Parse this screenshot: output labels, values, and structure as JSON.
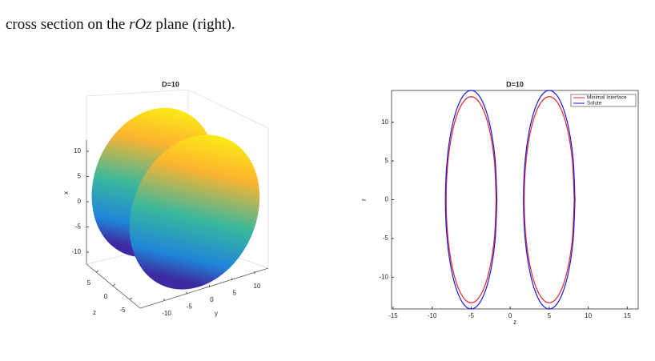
{
  "text": {
    "caption_start": "cross section on the ",
    "caption_math": "rOz",
    "caption_end": " plane (right)."
  },
  "chart_data": [
    {
      "type": "surface",
      "title": "D=10",
      "xlabel": "x",
      "ylabel": "y",
      "zlabel": "z",
      "xticks": [
        10,
        5,
        0,
        -5,
        -10
      ],
      "yticks": [
        -10,
        -5,
        0,
        5,
        10
      ],
      "zticks": [
        5,
        0,
        -5
      ]
    },
    {
      "type": "line",
      "title": "D=10",
      "xlabel": "z",
      "ylabel": "r",
      "xlim": [
        -15.2,
        16.4
      ],
      "ylim": [
        -14.1,
        14.1
      ],
      "xticks": [
        -15,
        -10,
        -5,
        0,
        5,
        10,
        15
      ],
      "yticks": [
        -10,
        -5,
        0,
        5,
        10
      ],
      "legend": "top-right",
      "series": [
        {
          "name": "Minimal Interface",
          "color": "#e3232c",
          "x": [
            -1.8,
            -2.04,
            -2.74,
            -3.78,
            -5,
            -6.22,
            -7.26,
            -7.96,
            -8.2,
            -7.96,
            -7.26,
            -6.22,
            -5,
            -3.78,
            -2.74,
            -2.04,
            -1.8,
            null,
            8.2,
            7.96,
            7.26,
            6.22,
            5,
            3.78,
            2.74,
            2.04,
            1.8,
            2.04,
            2.74,
            3.78,
            5,
            6.22,
            7.26,
            7.96,
            8.2
          ],
          "values": [
            0,
            5.09,
            9.4,
            12.29,
            13.3,
            12.29,
            9.4,
            5.09,
            0,
            -5.09,
            -9.4,
            -12.29,
            -13.3,
            -12.29,
            -9.4,
            -5.09,
            0,
            null,
            0,
            5.09,
            9.4,
            12.29,
            13.3,
            12.29,
            9.4,
            5.09,
            0,
            -5.09,
            -9.4,
            -12.29,
            -13.3,
            -12.29,
            -9.4,
            -5.09,
            0
          ]
        },
        {
          "name": "Solute",
          "color": "#1a1adb",
          "x": [
            -1.7,
            -1.95,
            -2.67,
            -3.74,
            -5,
            -6.26,
            -7.33,
            -8.05,
            -8.3,
            -8.05,
            -7.33,
            -6.26,
            -5,
            -3.74,
            -2.67,
            -1.95,
            -1.7,
            null,
            8.3,
            8.05,
            7.33,
            6.26,
            5,
            3.74,
            2.67,
            1.95,
            1.7,
            1.95,
            2.67,
            3.74,
            5,
            6.26,
            7.33,
            8.05,
            8.3
          ],
          "values": [
            0,
            5.4,
            9.97,
            13.03,
            14.1,
            13.03,
            9.97,
            5.4,
            0,
            -5.4,
            -9.97,
            -13.03,
            -14.1,
            -13.03,
            -9.97,
            -5.4,
            0,
            null,
            0,
            5.4,
            9.97,
            13.03,
            14.1,
            13.03,
            9.97,
            5.4,
            0,
            -5.4,
            -9.97,
            -13.03,
            -14.1,
            -13.03,
            -9.97,
            -5.4,
            0
          ]
        }
      ]
    }
  ]
}
